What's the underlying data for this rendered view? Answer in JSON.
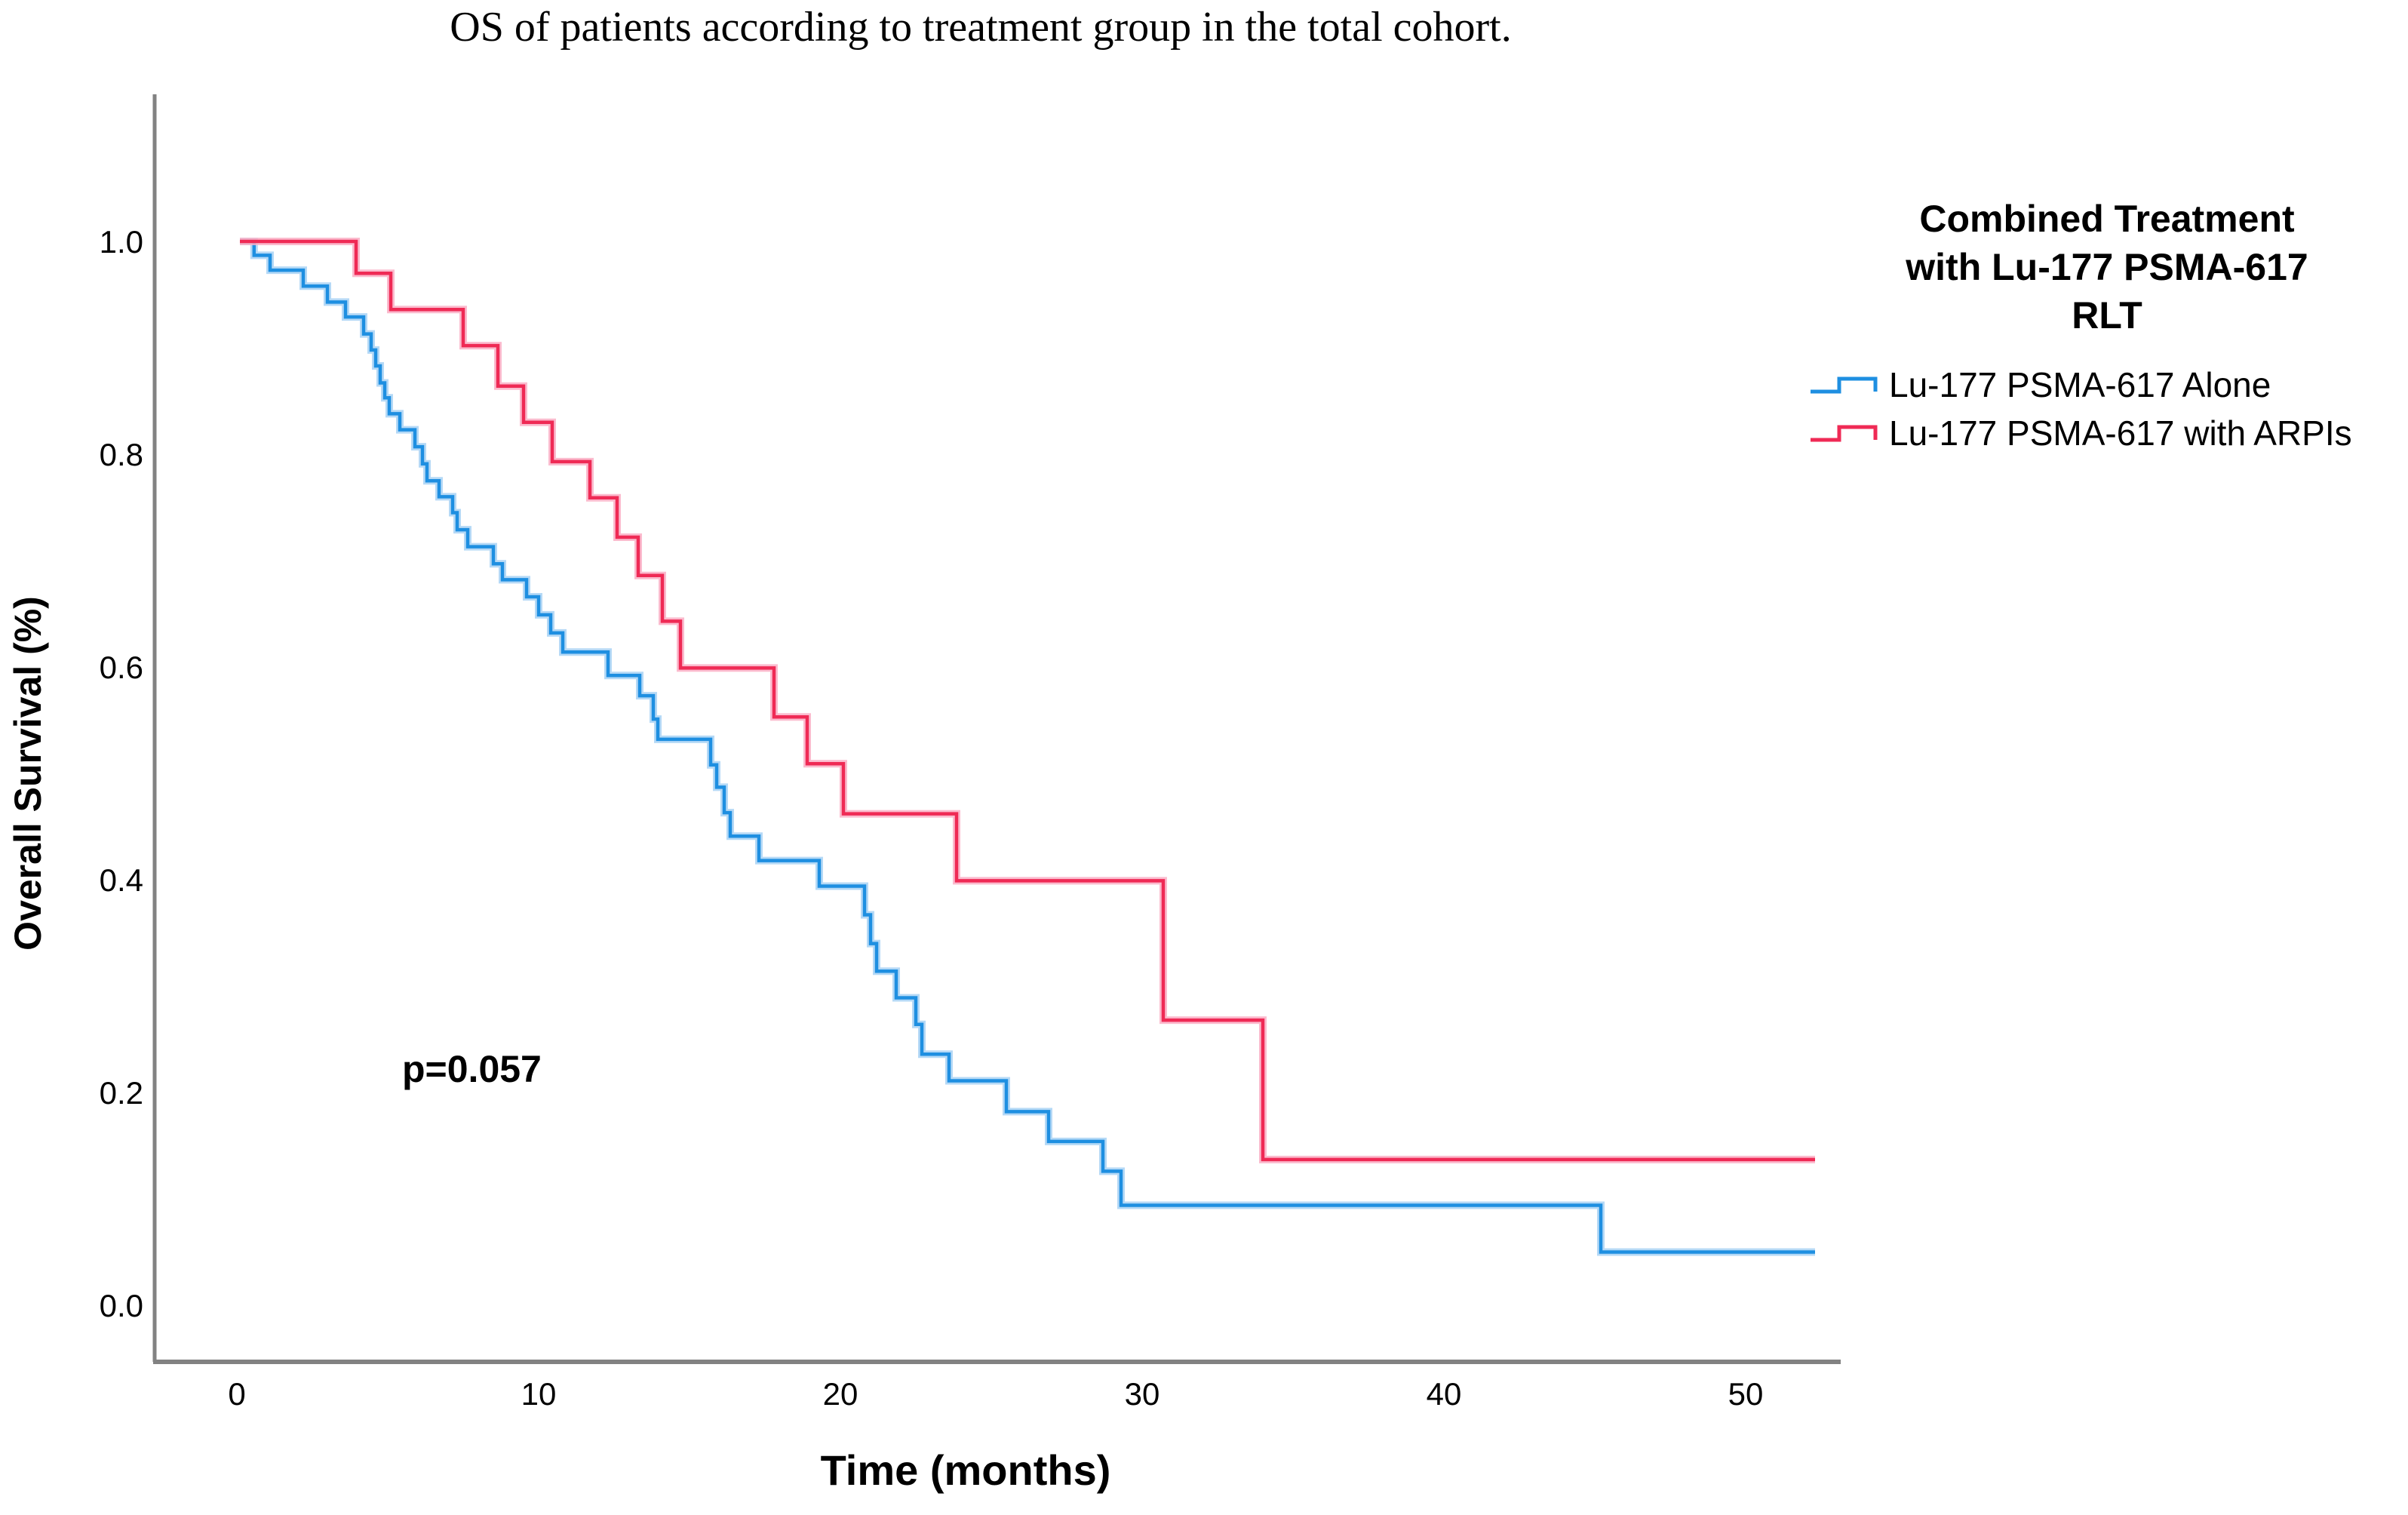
{
  "chart_data": {
    "type": "line",
    "subtype": "kaplan-meier-step",
    "title": "OS of patients according to treatment group in the total cohort.",
    "xlabel": "Time (months)",
    "ylabel": "Overall Survival (%)",
    "annotation": "p=0.057",
    "xticks": [
      0,
      10,
      20,
      30,
      40,
      50
    ],
    "yticks": [
      "1.0",
      "0.8",
      "0.6",
      "0.4",
      "0.2",
      "0.0"
    ],
    "xlim": [
      0,
      53
    ],
    "ylim": [
      0.0,
      1.0
    ],
    "grid": false,
    "legend_position": "right",
    "legend_title": "Combined Treatment\nwith Lu-177 PSMA-617\nRLT",
    "axis_color": "#828282",
    "x_end_months": 52.3,
    "series": [
      {
        "name": "Lu-177 PSMA-617 Alone",
        "color": "#1E8FE1",
        "halo_color": "#A8D2F4",
        "points": [
          [
            0.1,
            1.0
          ],
          [
            0.57,
            0.987
          ],
          [
            1.1,
            0.973
          ],
          [
            2.2,
            0.958
          ],
          [
            3.0,
            0.943
          ],
          [
            3.6,
            0.929
          ],
          [
            4.2,
            0.913
          ],
          [
            4.45,
            0.898
          ],
          [
            4.6,
            0.883
          ],
          [
            4.75,
            0.867
          ],
          [
            4.9,
            0.853
          ],
          [
            5.05,
            0.838
          ],
          [
            5.4,
            0.823
          ],
          [
            5.9,
            0.807
          ],
          [
            6.15,
            0.791
          ],
          [
            6.3,
            0.775
          ],
          [
            6.7,
            0.76
          ],
          [
            7.15,
            0.745
          ],
          [
            7.3,
            0.729
          ],
          [
            7.65,
            0.713
          ],
          [
            8.5,
            0.697
          ],
          [
            8.8,
            0.682
          ],
          [
            9.6,
            0.666
          ],
          [
            10.0,
            0.649
          ],
          [
            10.4,
            0.632
          ],
          [
            10.8,
            0.614
          ],
          [
            12.3,
            0.592
          ],
          [
            13.35,
            0.573
          ],
          [
            13.8,
            0.551
          ],
          [
            13.95,
            0.532
          ],
          [
            15.7,
            0.508
          ],
          [
            15.9,
            0.487
          ],
          [
            16.15,
            0.463
          ],
          [
            16.35,
            0.441
          ],
          [
            17.3,
            0.418
          ],
          [
            19.3,
            0.394
          ],
          [
            20.8,
            0.367
          ],
          [
            21.0,
            0.34
          ],
          [
            21.2,
            0.314
          ],
          [
            21.85,
            0.289
          ],
          [
            22.5,
            0.264
          ],
          [
            22.7,
            0.236
          ],
          [
            23.6,
            0.211
          ],
          [
            25.5,
            0.182
          ],
          [
            26.9,
            0.154
          ],
          [
            28.7,
            0.126
          ],
          [
            29.3,
            0.094
          ],
          [
            45.2,
            0.05
          ]
        ]
      },
      {
        "name": "Lu-177 PSMA-617 with ARPIs",
        "color": "#EF2A55",
        "halo_color": "#FAAFC5",
        "points": [
          [
            0.1,
            1.0
          ],
          [
            3.95,
            0.97
          ],
          [
            5.1,
            0.936
          ],
          [
            7.5,
            0.902
          ],
          [
            8.65,
            0.864
          ],
          [
            9.5,
            0.83
          ],
          [
            10.45,
            0.793
          ],
          [
            11.7,
            0.759
          ],
          [
            12.6,
            0.722
          ],
          [
            13.3,
            0.686
          ],
          [
            14.1,
            0.643
          ],
          [
            14.7,
            0.599
          ],
          [
            17.8,
            0.553
          ],
          [
            18.9,
            0.509
          ],
          [
            20.1,
            0.462
          ],
          [
            23.85,
            0.399
          ],
          [
            30.7,
            0.268
          ],
          [
            34.0,
            0.137
          ]
        ]
      }
    ]
  }
}
